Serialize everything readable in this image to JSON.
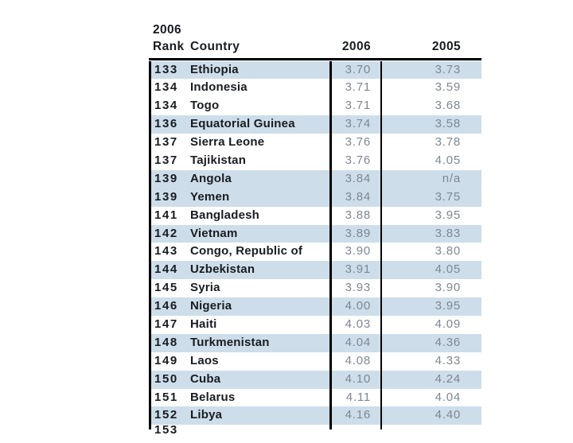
{
  "table": {
    "header": {
      "rank_top": "2006",
      "rank": "Rank",
      "country": "Country",
      "year_current": "2006",
      "year_prior": "2005"
    },
    "rows": [
      {
        "rank": "133",
        "country": "Ethiopia",
        "score_2006": "3.70",
        "score_2005": "3.73",
        "shaded": true
      },
      {
        "rank": "134",
        "country": "Indonesia",
        "score_2006": "3.71",
        "score_2005": "3.59",
        "shaded": false
      },
      {
        "rank": "134",
        "country": "Togo",
        "score_2006": "3.71",
        "score_2005": "3.68",
        "shaded": false
      },
      {
        "rank": "136",
        "country": "Equatorial Guinea",
        "score_2006": "3.74",
        "score_2005": "3.58",
        "shaded": true
      },
      {
        "rank": "137",
        "country": "Sierra Leone",
        "score_2006": "3.76",
        "score_2005": "3.78",
        "shaded": false
      },
      {
        "rank": "137",
        "country": "Tajikistan",
        "score_2006": "3.76",
        "score_2005": "4.05",
        "shaded": false
      },
      {
        "rank": "139",
        "country": "Angola",
        "score_2006": "3.84",
        "score_2005": "n/a",
        "shaded": true
      },
      {
        "rank": "139",
        "country": "Yemen",
        "score_2006": "3.84",
        "score_2005": "3.75",
        "shaded": true
      },
      {
        "rank": "141",
        "country": "Bangladesh",
        "score_2006": "3.88",
        "score_2005": "3.95",
        "shaded": false
      },
      {
        "rank": "142",
        "country": "Vietnam",
        "score_2006": "3.89",
        "score_2005": "3.83",
        "shaded": true
      },
      {
        "rank": "143",
        "country": "Congo, Republic of",
        "score_2006": "3.90",
        "score_2005": "3.80",
        "shaded": false
      },
      {
        "rank": "144",
        "country": "Uzbekistan",
        "score_2006": "3.91",
        "score_2005": "4.05",
        "shaded": true
      },
      {
        "rank": "145",
        "country": "Syria",
        "score_2006": "3.93",
        "score_2005": "3.90",
        "shaded": false
      },
      {
        "rank": "146",
        "country": "Nigeria",
        "score_2006": "4.00",
        "score_2005": "3.95",
        "shaded": true
      },
      {
        "rank": "147",
        "country": "Haiti",
        "score_2006": "4.03",
        "score_2005": "4.09",
        "shaded": false
      },
      {
        "rank": "148",
        "country": "Turkmenistan",
        "score_2006": "4.04",
        "score_2005": "4.36",
        "shaded": true
      },
      {
        "rank": "149",
        "country": "Laos",
        "score_2006": "4.08",
        "score_2005": "4.33",
        "shaded": false
      },
      {
        "rank": "150",
        "country": "Cuba",
        "score_2006": "4.10",
        "score_2005": "4.24",
        "shaded": true
      },
      {
        "rank": "151",
        "country": "Belarus",
        "score_2006": "4.11",
        "score_2005": "4.04",
        "shaded": false
      },
      {
        "rank": "152",
        "country": "Libya",
        "score_2006": "4.16",
        "score_2005": "4.40",
        "shaded": true
      }
    ],
    "partial_row": {
      "rank": "153"
    }
  },
  "colors": {
    "row_band": "#cddeea",
    "text_dark": "#191c21",
    "text_value": "#7d8893",
    "rule": "#000000"
  }
}
